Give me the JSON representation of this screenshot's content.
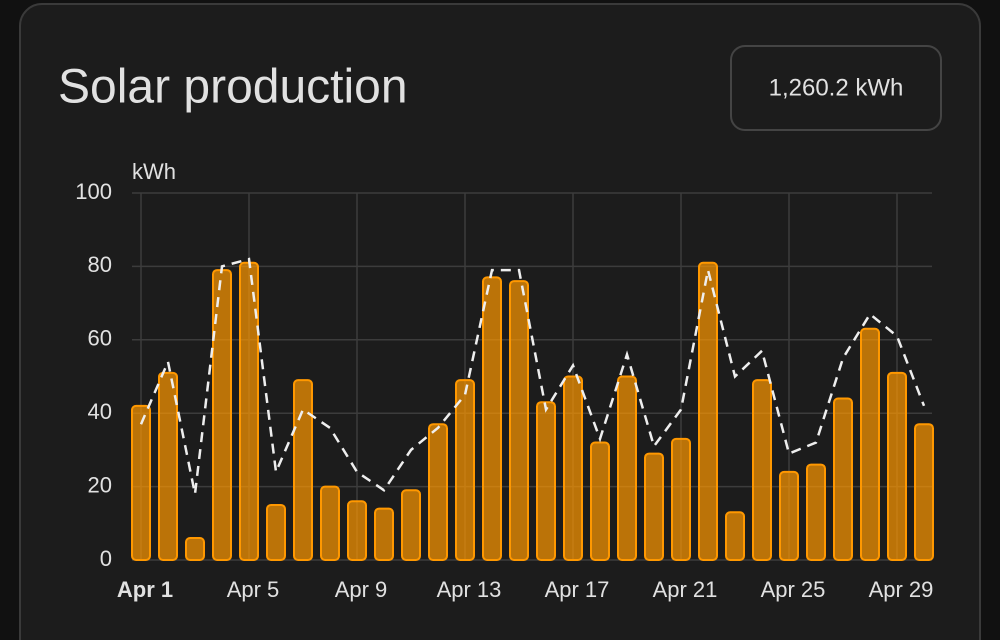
{
  "chart_data": {
    "type": "bar",
    "title": "Solar production",
    "total": "1,260.2 kWh",
    "y_label": "kWh",
    "categories": [
      "Apr 1",
      null,
      null,
      null,
      "Apr 5",
      null,
      null,
      null,
      "Apr 9",
      null,
      null,
      null,
      "Apr 13",
      null,
      null,
      null,
      "Apr 17",
      null,
      null,
      null,
      "Apr 21",
      null,
      null,
      null,
      "Apr 25",
      null,
      null,
      null,
      "Apr 29",
      null
    ],
    "series": [
      {
        "type": "bar",
        "color": "#ff9800",
        "values": [
          42,
          51,
          6,
          79,
          81,
          15,
          49,
          20,
          16,
          14,
          19,
          37,
          49,
          77,
          76,
          43,
          50,
          32,
          50,
          29,
          33,
          81,
          13,
          49,
          24,
          26,
          44,
          63,
          51,
          37
        ]
      },
      {
        "type": "dashed-line",
        "color": "#eeeeee",
        "values": [
          37,
          54,
          18,
          80,
          82,
          24,
          41,
          36,
          24,
          19,
          30,
          36,
          45,
          79,
          79,
          41,
          53,
          33,
          56,
          31,
          41,
          79,
          50,
          57,
          29,
          32,
          55,
          67,
          61,
          42
        ]
      }
    ],
    "ylim": [
      0,
      100
    ],
    "yticks": [
      0,
      20,
      40,
      60,
      80,
      100
    ],
    "grid": true
  }
}
